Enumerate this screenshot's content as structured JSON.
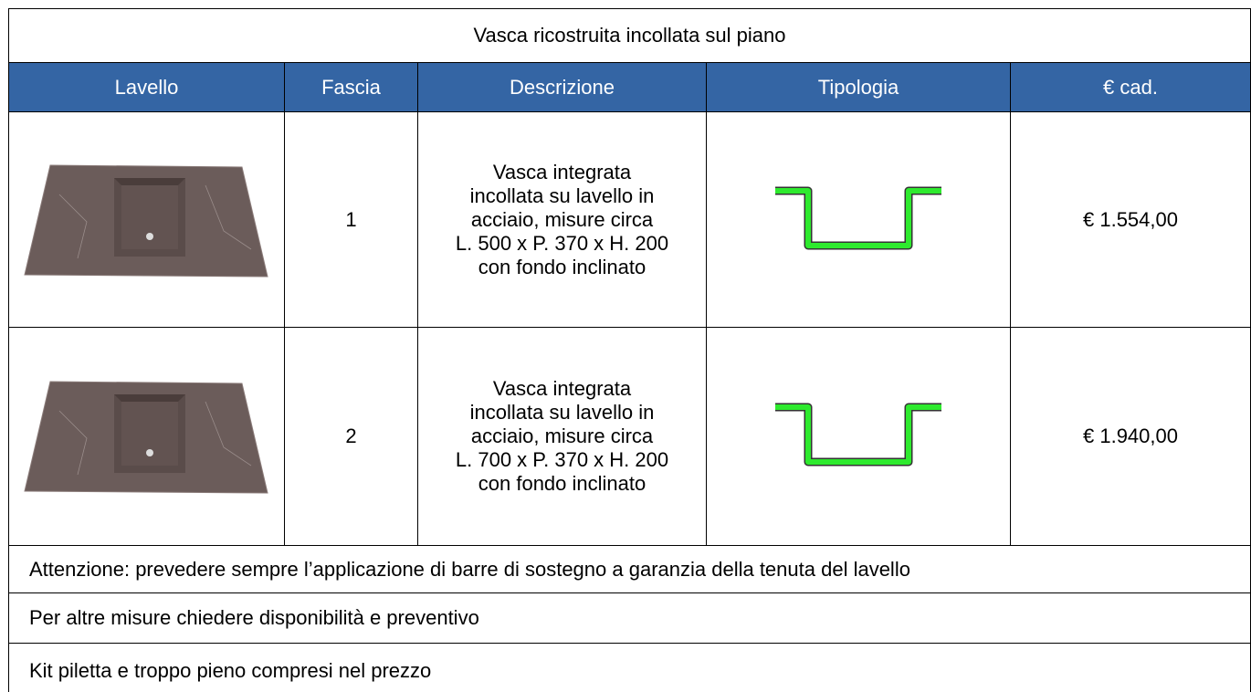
{
  "title": "Vasca ricostruita incollata sul piano",
  "headers": [
    "Lavello",
    "Fascia",
    "Descrizione",
    "Tipologia",
    "€ cad."
  ],
  "rows": [
    {
      "fascia": "1",
      "description": [
        "Vasca integrata",
        "incollata su lavello in",
        "acciaio, misure circa",
        "L. 500 x P. 370 x H. 200",
        "con fondo inclinato"
      ],
      "price": "€ 1.554,00"
    },
    {
      "fascia": "2",
      "description": [
        "Vasca integrata",
        "incollata su lavello in",
        "acciaio, misure circa",
        "L. 700 x P. 370 x H. 200",
        "con fondo inclinato"
      ],
      "price": "€ 1.940,00"
    }
  ],
  "notes": [
    "Attenzione: prevedere sempre l’applicazione di barre di sostegno a garanzia della tenuta del lavello",
    "Per altre misure chiedere disponibilità e preventivo",
    "Kit piletta e troppo pieno compresi nel prezzo"
  ]
}
